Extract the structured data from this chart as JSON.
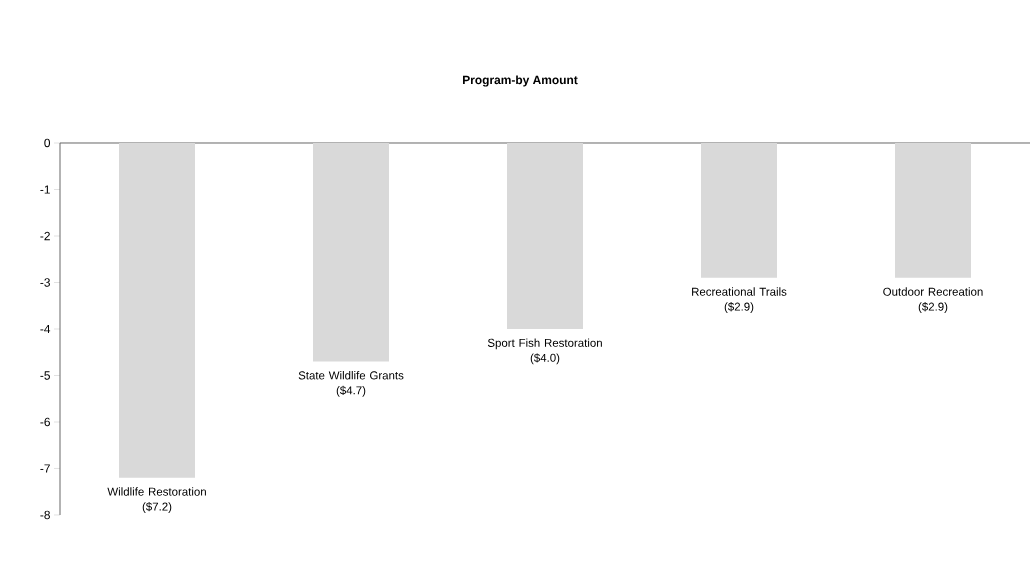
{
  "chart_data": {
    "type": "bar",
    "title": "Program-by Amount",
    "categories": [
      "Wildlife Restoration",
      "State Wildlife Grants",
      "Sport Fish Restoration",
      "Recreational Trails",
      "Outdoor Recreation"
    ],
    "values": [
      -7.2,
      -4.7,
      -4.0,
      -2.9,
      -2.9
    ],
    "value_labels": [
      "($7.2)",
      "($4.7)",
      "($4.0)",
      "($2.9)",
      "($2.9)"
    ],
    "color": "#d9d9d9",
    "ylim": [
      -8,
      0
    ],
    "yticks": [
      0,
      -1,
      -2,
      -3,
      -4,
      -5,
      -6,
      -7,
      -8
    ]
  }
}
